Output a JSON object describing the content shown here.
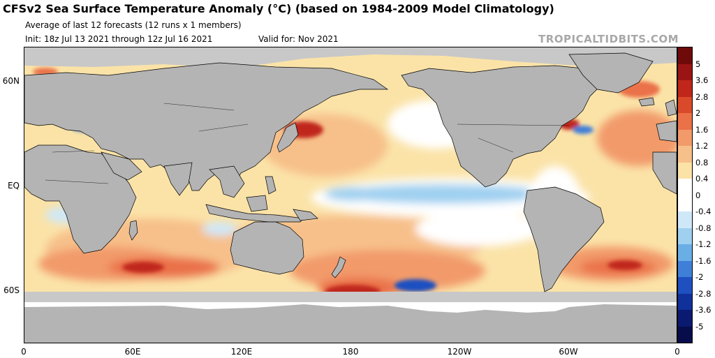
{
  "header": {
    "title": "CFSv2 Sea Surface Temperature Anomaly (°C) (based on 1984-2009 Model Climatology)",
    "subtitle": "Average of last 12 forecasts (12 runs x 1 members)",
    "init": "Init: 18z Jul 13 2021 through 12z Jul 16 2021",
    "valid": "Valid for: Nov 2021",
    "credit": "TROPICALTIDBITS.COM"
  },
  "map": {
    "lat_labels": [
      {
        "text": "60N",
        "lat": 60
      },
      {
        "text": "EQ",
        "lat": 0
      },
      {
        "text": "60S",
        "lat": -60
      }
    ],
    "lon_labels": [
      {
        "text": "0",
        "lon": 0
      },
      {
        "text": "60E",
        "lon": 60
      },
      {
        "text": "120E",
        "lon": 120
      },
      {
        "text": "180",
        "lon": 180
      },
      {
        "text": "120W",
        "lon": 240
      },
      {
        "text": "60W",
        "lon": 300
      },
      {
        "text": "0",
        "lon": 360
      }
    ],
    "land_color": "#b4b4b4",
    "ice_color": "#c8c8c8"
  },
  "colorbar": {
    "labels": [
      "5",
      "3.6",
      "2.8",
      "2",
      "1.6",
      "1.2",
      "0.8",
      "0.4",
      "0",
      "-0.4",
      "-0.8",
      "-1.2",
      "-1.6",
      "-2",
      "-2.8",
      "-3.6",
      "-5"
    ],
    "colors": [
      "#6e0a0a",
      "#9b1414",
      "#c0261a",
      "#d94a2a",
      "#ea7148",
      "#f29a6a",
      "#f7c08a",
      "#fbe3a8",
      "#ffffff",
      "#ffffff",
      "#cfe8f8",
      "#9fd0f0",
      "#6aaee6",
      "#3f7fd8",
      "#1f50c0",
      "#10309a",
      "#0a1a70",
      "#060d4a"
    ]
  }
}
